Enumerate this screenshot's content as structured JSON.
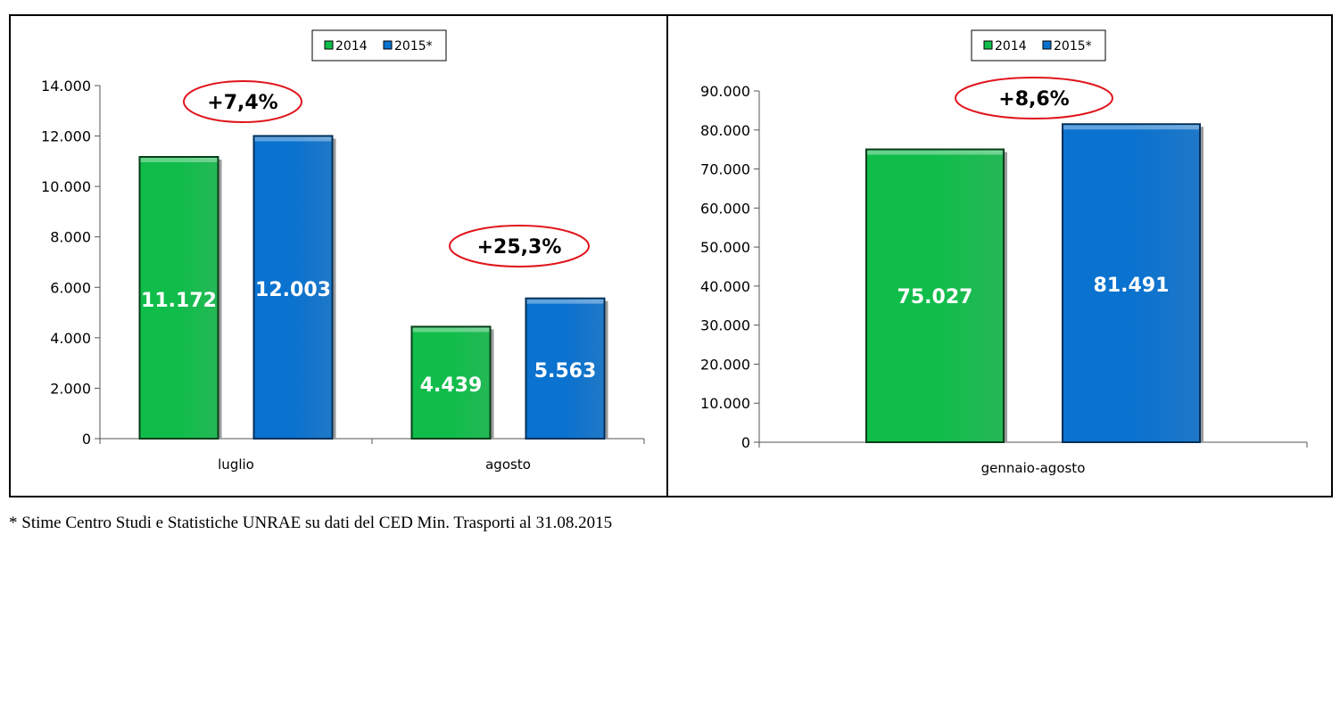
{
  "colors": {
    "s2014": "#10bd4a",
    "s2015": "#0a72cf",
    "ellipse": "#e0141c"
  },
  "chart_data": [
    {
      "type": "bar",
      "categories": [
        "luglio",
        "agosto"
      ],
      "series": [
        {
          "name": "2014",
          "values": [
            11172,
            4439
          ],
          "labels": [
            "11.172",
            "4.439"
          ]
        },
        {
          "name": "2015*",
          "values": [
            12003,
            5563
          ],
          "labels": [
            "12.003",
            "5.563"
          ]
        }
      ],
      "ylim": [
        0,
        14000
      ],
      "yticks": [
        0,
        2000,
        4000,
        6000,
        8000,
        10000,
        12000,
        14000
      ],
      "ytick_labels": [
        "0",
        "2.000",
        "4.000",
        "6.000",
        "8.000",
        "10.000",
        "12.000",
        "14.000"
      ],
      "annotations": [
        "+7,4%",
        "+25,3%"
      ],
      "legend": "top-center",
      "grid": false
    },
    {
      "type": "bar",
      "categories": [
        "gennaio-agosto"
      ],
      "series": [
        {
          "name": "2014",
          "values": [
            75027
          ],
          "labels": [
            "75.027"
          ]
        },
        {
          "name": "2015*",
          "values": [
            81491
          ],
          "labels": [
            "81.491"
          ]
        }
      ],
      "ylim": [
        0,
        90000
      ],
      "yticks": [
        0,
        10000,
        20000,
        30000,
        40000,
        50000,
        60000,
        70000,
        80000,
        90000
      ],
      "ytick_labels": [
        "0",
        "10.000",
        "20.000",
        "30.000",
        "40.000",
        "50.000",
        "60.000",
        "70.000",
        "80.000",
        "90.000"
      ],
      "annotations": [
        "+8,6%"
      ],
      "legend": "top-center",
      "grid": false
    }
  ],
  "footnote": "* Stime Centro Studi e Statistiche UNRAE su dati del CED Min. Trasporti al 31.08.2015"
}
